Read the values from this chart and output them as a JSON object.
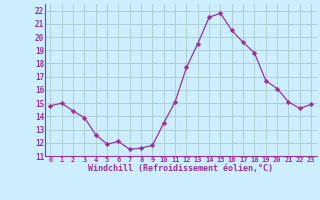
{
  "x": [
    0,
    1,
    2,
    3,
    4,
    5,
    6,
    7,
    8,
    9,
    10,
    11,
    12,
    13,
    14,
    15,
    16,
    17,
    18,
    19,
    20,
    21,
    22,
    23
  ],
  "y": [
    14.8,
    15.0,
    14.4,
    13.9,
    12.6,
    11.9,
    12.1,
    11.5,
    11.6,
    11.8,
    13.5,
    15.1,
    17.7,
    19.5,
    21.5,
    21.8,
    20.5,
    19.6,
    18.8,
    16.7,
    16.1,
    15.1,
    14.6,
    14.9
  ],
  "line_color": "#993399",
  "marker": "D",
  "marker_size": 2.2,
  "bg_color": "#cceeff",
  "grid_color": "#aacccc",
  "xlabel": "Windchill (Refroidissement éolien,°C)",
  "xlabel_color": "#993399",
  "tick_color": "#993399",
  "ylim": [
    11,
    22.5
  ],
  "xlim": [
    -0.5,
    23.5
  ],
  "yticks": [
    11,
    12,
    13,
    14,
    15,
    16,
    17,
    18,
    19,
    20,
    21,
    22
  ],
  "xticks": [
    0,
    1,
    2,
    3,
    4,
    5,
    6,
    7,
    8,
    9,
    10,
    11,
    12,
    13,
    14,
    15,
    16,
    17,
    18,
    19,
    20,
    21,
    22,
    23
  ],
  "xtick_labels": [
    "0",
    "1",
    "2",
    "3",
    "4",
    "5",
    "6",
    "7",
    "8",
    "9",
    "10",
    "11",
    "12",
    "13",
    "14",
    "15",
    "16",
    "17",
    "18",
    "19",
    "20",
    "21",
    "22",
    "23"
  ],
  "ytick_labels": [
    "11",
    "12",
    "13",
    "14",
    "15",
    "16",
    "17",
    "18",
    "19",
    "20",
    "21",
    "22"
  ],
  "border_color": "#993399"
}
